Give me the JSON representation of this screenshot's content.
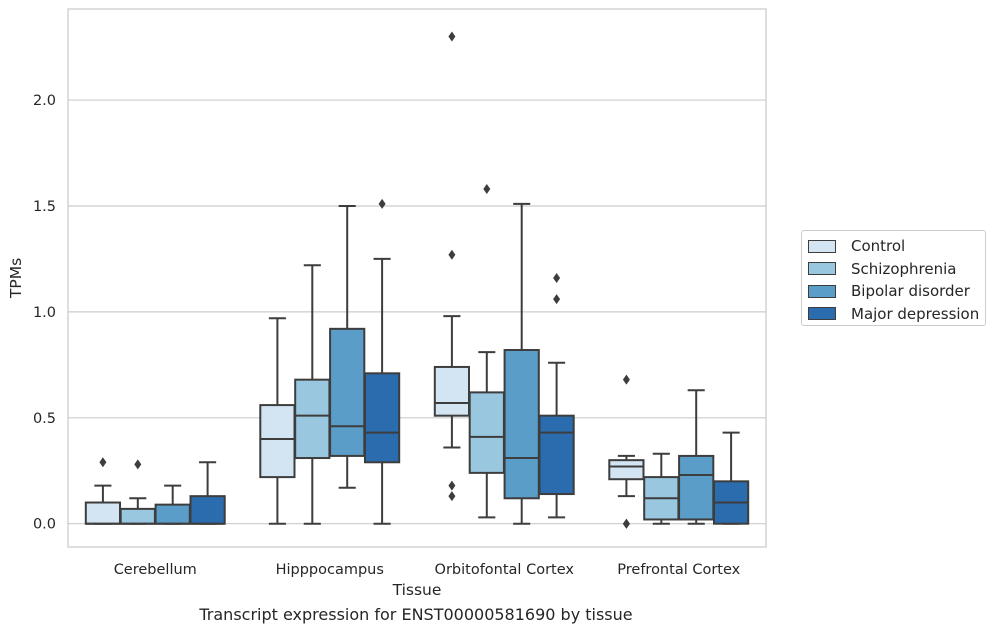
{
  "chart_data": {
    "type": "box",
    "caption": "Transcript expression for ENST00000581690 by tissue",
    "xlabel": "Tissue",
    "ylabel": "TPMs",
    "ylim": [
      -0.11,
      2.43
    ],
    "yticks": [
      0.0,
      0.5,
      1.0,
      1.5,
      2.0
    ],
    "ytick_labels": [
      "0.0",
      "0.5",
      "1.0",
      "1.5",
      "2.0"
    ],
    "grid": "horizontal",
    "legend_position": "outside-right",
    "categories": [
      "Cerebellum",
      "Hipppocampus",
      "Orbitofontal Cortex",
      "Prefrontal Cortex"
    ],
    "series": [
      {
        "name": "Control",
        "color": "#d3e4f3",
        "boxes": [
          {
            "whislo": 0.0,
            "q1": 0.0,
            "med": 0.0,
            "q3": 0.1,
            "whishi": 0.18,
            "fliers": [
              0.29
            ]
          },
          {
            "whislo": 0.0,
            "q1": 0.22,
            "med": 0.4,
            "q3": 0.56,
            "whishi": 0.97,
            "fliers": []
          },
          {
            "whislo": 0.36,
            "q1": 0.51,
            "med": 0.57,
            "q3": 0.74,
            "whishi": 0.98,
            "fliers": [
              1.27,
              2.3,
              0.18,
              0.13
            ]
          },
          {
            "whislo": 0.13,
            "q1": 0.21,
            "med": 0.27,
            "q3": 0.3,
            "whishi": 0.32,
            "fliers": [
              0.68,
              0.0,
              0.0
            ]
          }
        ]
      },
      {
        "name": "Schizophrenia",
        "color": "#9ac7e0",
        "boxes": [
          {
            "whislo": 0.0,
            "q1": 0.0,
            "med": 0.0,
            "q3": 0.07,
            "whishi": 0.12,
            "fliers": [
              0.28
            ]
          },
          {
            "whislo": 0.0,
            "q1": 0.31,
            "med": 0.51,
            "q3": 0.68,
            "whishi": 1.22,
            "fliers": []
          },
          {
            "whislo": 0.03,
            "q1": 0.24,
            "med": 0.41,
            "q3": 0.62,
            "whishi": 0.81,
            "fliers": [
              1.58
            ]
          },
          {
            "whislo": 0.0,
            "q1": 0.02,
            "med": 0.12,
            "q3": 0.22,
            "whishi": 0.33,
            "fliers": []
          }
        ]
      },
      {
        "name": "Bipolar disorder",
        "color": "#5b9dc9",
        "boxes": [
          {
            "whislo": 0.0,
            "q1": 0.0,
            "med": 0.0,
            "q3": 0.09,
            "whishi": 0.18,
            "fliers": []
          },
          {
            "whislo": 0.17,
            "q1": 0.32,
            "med": 0.46,
            "q3": 0.92,
            "whishi": 1.5,
            "fliers": []
          },
          {
            "whislo": 0.0,
            "q1": 0.12,
            "med": 0.31,
            "q3": 0.82,
            "whishi": 1.51,
            "fliers": []
          },
          {
            "whislo": 0.0,
            "q1": 0.02,
            "med": 0.23,
            "q3": 0.32,
            "whishi": 0.63,
            "fliers": []
          }
        ]
      },
      {
        "name": "Major depression",
        "color": "#2a6cad",
        "boxes": [
          {
            "whislo": 0.0,
            "q1": 0.0,
            "med": 0.0,
            "q3": 0.13,
            "whishi": 0.29,
            "fliers": []
          },
          {
            "whislo": 0.0,
            "q1": 0.29,
            "med": 0.43,
            "q3": 0.71,
            "whishi": 1.25,
            "fliers": [
              1.51
            ]
          },
          {
            "whislo": 0.03,
            "q1": 0.14,
            "med": 0.43,
            "q3": 0.51,
            "whishi": 0.76,
            "fliers": [
              1.16,
              1.06
            ]
          },
          {
            "whislo": 0.0,
            "q1": 0.0,
            "med": 0.1,
            "q3": 0.2,
            "whishi": 0.43,
            "fliers": []
          }
        ]
      }
    ]
  }
}
